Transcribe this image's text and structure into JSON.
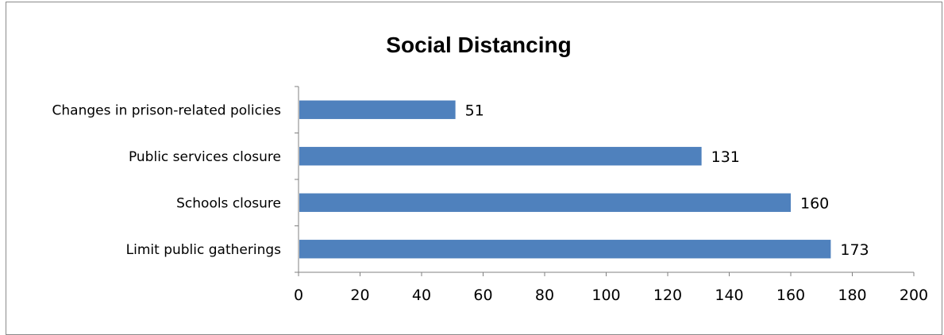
{
  "chart_data": {
    "type": "bar",
    "orientation": "horizontal",
    "title": "Social Distancing",
    "categories": [
      "Limit public gatherings",
      "Schools closure",
      "Public services closure",
      "Changes in prison-related policies"
    ],
    "values": [
      173,
      160,
      131,
      51
    ],
    "xlim": [
      0,
      200
    ],
    "xticks": [
      0,
      20,
      40,
      60,
      80,
      100,
      120,
      140,
      160,
      180,
      200
    ],
    "bar_color": "#4F81BD",
    "grid": false,
    "legend": "none",
    "data_labels": true
  }
}
